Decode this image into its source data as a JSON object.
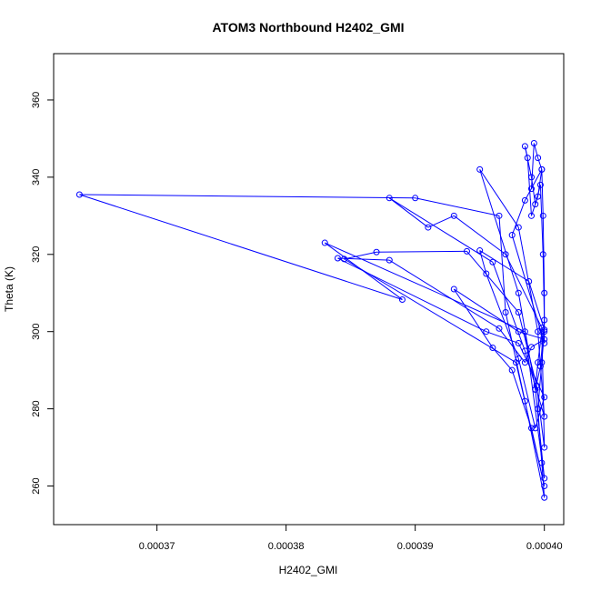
{
  "chart_data": {
    "type": "scatter",
    "title": "ATOM3 Northbound H2402_GMI",
    "xlabel": "H2402_GMI",
    "ylabel": "Theta (K)",
    "xlim": [
      0.000362,
      0.0004015
    ],
    "ylim": [
      250,
      372
    ],
    "x_ticks": [
      0.00037,
      0.00038,
      0.00039,
      0.0004
    ],
    "x_tick_labels": [
      "0.00037",
      "0.00038",
      "0.00039",
      "0.00040"
    ],
    "y_ticks": [
      260,
      280,
      300,
      320,
      340,
      360
    ],
    "y_tick_labels": [
      "260",
      "280",
      "300",
      "320",
      "340",
      "360"
    ],
    "grid": false,
    "marker": "open-circle",
    "connect_points": true,
    "color": "#0000ff",
    "points": [
      [
        0.000399,
        337.0
      ],
      [
        0.0003992,
        348.8
      ],
      [
        0.0003995,
        345.0
      ],
      [
        0.0003998,
        342.0
      ],
      [
        0.0003999,
        330.0
      ],
      [
        0.0004,
        310.0
      ],
      [
        0.0004,
        300.0
      ],
      [
        0.0003998,
        292.0
      ],
      [
        0.0003995,
        280.0
      ],
      [
        0.0003998,
        266.0
      ],
      [
        0.0004,
        257.0
      ],
      [
        0.0003985,
        282.0
      ],
      [
        0.000397,
        305.0
      ],
      [
        0.0003965,
        330.0
      ],
      [
        0.00039,
        334.6
      ],
      [
        0.000364,
        335.5
      ],
      [
        0.000389,
        308.3
      ],
      [
        0.000383,
        323.0
      ],
      [
        0.0003985,
        300.0
      ],
      [
        0.0004,
        262.0
      ],
      [
        0.0003993,
        285.0
      ],
      [
        0.000398,
        310.0
      ],
      [
        0.000395,
        342.0
      ],
      [
        0.000398,
        327.0
      ],
      [
        0.0003995,
        300.0
      ],
      [
        0.0004,
        278.0
      ],
      [
        0.0003985,
        295.0
      ],
      [
        0.000396,
        318.0
      ],
      [
        0.000388,
        334.6
      ],
      [
        0.000391,
        327.0
      ],
      [
        0.000393,
        330.0
      ],
      [
        0.000397,
        320.0
      ],
      [
        0.0003998,
        301.0
      ],
      [
        0.0004,
        270.0
      ],
      [
        0.0003994,
        286.0
      ],
      [
        0.000398,
        305.0
      ],
      [
        0.000394,
        320.8
      ],
      [
        0.000387,
        320.6
      ],
      [
        0.0003845,
        318.8
      ],
      [
        0.0003978,
        292.0
      ],
      [
        0.0004,
        260.0
      ],
      [
        0.000399,
        275.0
      ],
      [
        0.0003975,
        290.0
      ],
      [
        0.000396,
        295.8
      ],
      [
        0.000393,
        311.0
      ],
      [
        0.000398,
        300.0
      ],
      [
        0.0004,
        298.0
      ],
      [
        0.000399,
        296.0
      ],
      [
        0.0003985,
        292.0
      ],
      [
        0.0003965,
        300.8
      ],
      [
        0.000388,
        318.5
      ],
      [
        0.000384,
        319.0
      ],
      [
        0.0003955,
        300.0
      ],
      [
        0.000398,
        297.0
      ],
      [
        0.0004,
        283.0
      ],
      [
        0.0003993,
        275.0
      ],
      [
        0.000398,
        293.0
      ],
      [
        0.0003955,
        315.0
      ],
      [
        0.000395,
        321.0
      ],
      [
        0.0003988,
        313.0
      ],
      [
        0.0004,
        300.5
      ],
      [
        0.0004,
        297.0
      ],
      [
        0.0003975,
        325.0
      ],
      [
        0.0003985,
        334.0
      ],
      [
        0.0003998,
        342.0
      ],
      [
        0.0003995,
        335.0
      ],
      [
        0.000399,
        330.0
      ],
      [
        0.0003987,
        345.0
      ],
      [
        0.0003985,
        348.0
      ],
      [
        0.000399,
        340.0
      ],
      [
        0.0003993,
        333.0
      ],
      [
        0.0003997,
        338.0
      ],
      [
        0.0003999,
        320.0
      ],
      [
        0.0004,
        303.0
      ],
      [
        0.0003997,
        291.0
      ],
      [
        0.0003993,
        285.0
      ],
      [
        0.0003995,
        292.0
      ],
      [
        0.0003998,
        300.0
      ]
    ]
  }
}
